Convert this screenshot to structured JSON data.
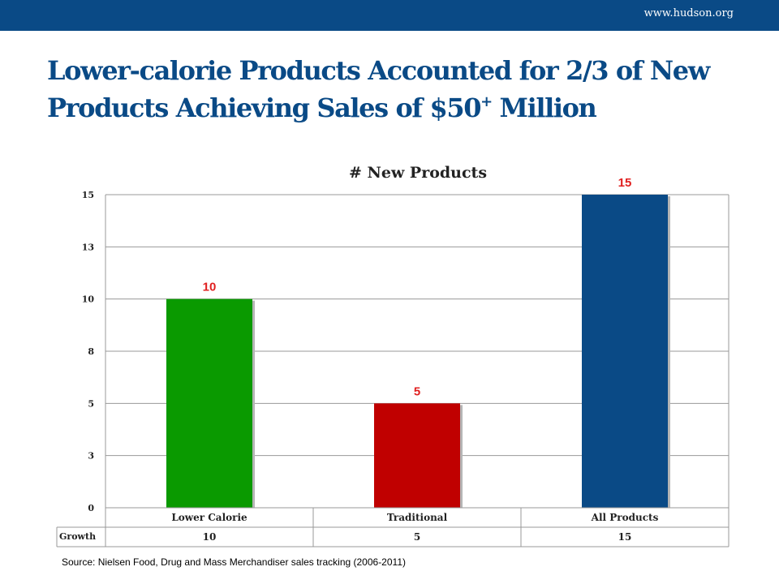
{
  "header": {
    "site_url": "www.hudson.org",
    "title_main": "Lower-calorie Products Accounted for 2/3 of New Products Achieving Sales of $50",
    "title_superscript": "+",
    "title_end": " Million"
  },
  "footer": {
    "source": "Source: Nielsen Food, Drug and Mass Merchandiser sales tracking (2006-2011)"
  },
  "chart_data": {
    "type": "bar",
    "title": "# New Products",
    "categories": [
      "Lower Calorie",
      "Traditional",
      "All Products"
    ],
    "series": [
      {
        "name": "Growth",
        "values": [
          10,
          5,
          15
        ]
      }
    ],
    "bar_colors": [
      "#0a9a00",
      "#c00000",
      "#0a4a86"
    ],
    "data_label_color": "#e02020",
    "ylim": [
      0,
      15
    ],
    "y_ticks": [
      0,
      2.5,
      5,
      7.5,
      10,
      12.5,
      15
    ],
    "y_tick_labels": [
      "0",
      "3",
      "5",
      "8",
      "10",
      "13",
      "15"
    ],
    "data_labels": [
      "10",
      "5",
      "15"
    ],
    "data_table": {
      "row_label": "Growth",
      "values": [
        "10",
        "5",
        "15"
      ]
    },
    "grid": true,
    "legend": "none"
  }
}
